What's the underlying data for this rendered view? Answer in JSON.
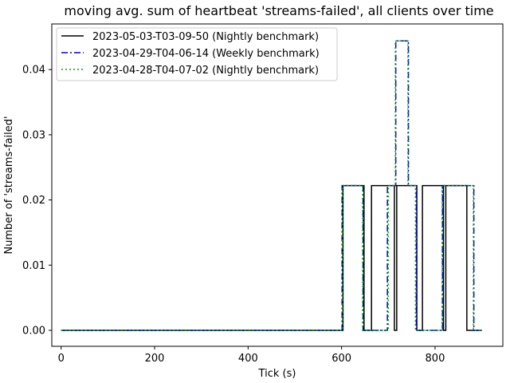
{
  "chart_data": {
    "type": "line",
    "step": "post",
    "title": "moving avg. sum of heartbeat 'streams-failed', all clients over time",
    "xlabel": "Tick (s)",
    "ylabel": "Number of 'streams-failed'",
    "xlim": [
      -20,
      945
    ],
    "ylim": [
      -0.00245,
      0.047
    ],
    "xticks": [
      0,
      200,
      400,
      600,
      800
    ],
    "xtick_labels": [
      "0",
      "200",
      "400",
      "600",
      "800"
    ],
    "yticks": [
      0.0,
      0.01,
      0.02,
      0.03,
      0.04
    ],
    "ytick_labels": [
      "0.00",
      "0.01",
      "0.02",
      "0.03",
      "0.04"
    ],
    "grid": false,
    "legend_position": "top-left",
    "series": [
      {
        "name": "2023-05-03-T03-09-50 (Nightly benchmark)",
        "color": "#000000",
        "dash": "solid",
        "x": [
          0,
          603,
          648,
          664,
          713,
          718,
          761,
          773,
          818,
          823,
          868,
          900
        ],
        "y": [
          0,
          0.0222,
          0,
          0.0222,
          0,
          0.0222,
          0,
          0.0222,
          0,
          0.0222,
          0,
          0
        ]
      },
      {
        "name": "2023-04-29-T04-06-14 (Weekly benchmark)",
        "color": "#0000cc",
        "dash": "dashdot",
        "x": [
          0,
          601,
          646,
          698,
          716,
          743,
          760,
          816,
          837,
          883,
          900
        ],
        "y": [
          0,
          0.0222,
          0,
          0.0222,
          0.0444,
          0.0222,
          0,
          0.0222,
          0.0222,
          0,
          0
        ]
      },
      {
        "name": "2023-04-28-T04-07-02 (Nightly benchmark)",
        "color": "#00aa00",
        "dash": "dotted",
        "x": [
          0,
          602,
          645,
          700,
          715,
          742,
          758,
          815,
          836,
          882,
          900
        ],
        "y": [
          0,
          0.0222,
          0,
          0.0222,
          0.0444,
          0.0222,
          0,
          0.0222,
          0.0222,
          0,
          0
        ]
      }
    ]
  }
}
